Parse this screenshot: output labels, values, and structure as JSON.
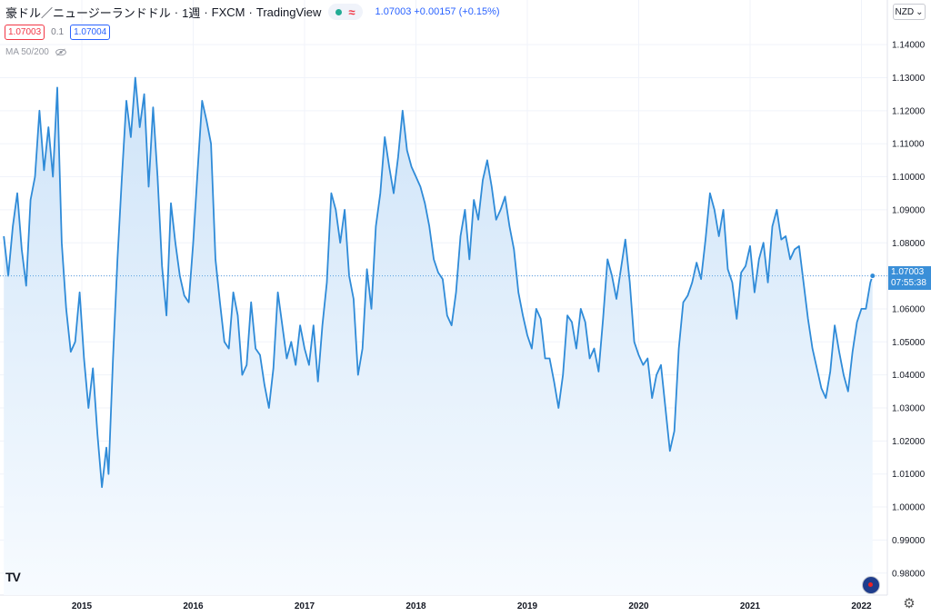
{
  "header": {
    "symbol": "豪ドル／ニュージーランドドル",
    "interval": "1週",
    "exchange": "FXCM",
    "source": "TradingView",
    "approx_symbol": "≈",
    "quote": "1.07003 +0.00157 (+0.15%)"
  },
  "trade": {
    "sell_price": "1.07003",
    "spread": "0.1",
    "buy_price": "1.07004"
  },
  "indicator": {
    "label": "MA 50/200"
  },
  "currency": {
    "label": "NZD",
    "arrow": "⌄"
  },
  "last_price": {
    "price": "1.07003",
    "countdown": "07:55:38"
  },
  "logo": {
    "text": "TV"
  },
  "colors": {
    "line": "#2f8bd8",
    "fill_top": "#cfe4f8",
    "fill_bottom": "#f7fbff",
    "grid": "#f0f3fa",
    "price_label": "#3a8fd8"
  },
  "chart_data": {
    "type": "area",
    "x_tick_labels": [
      "2015",
      "2016",
      "2017",
      "2018",
      "2019",
      "2020",
      "2021",
      "2022"
    ],
    "y_tick_labels": [
      "1.14000",
      "1.13000",
      "1.12000",
      "1.11000",
      "1.10000",
      "1.09000",
      "1.08000",
      "1.07000",
      "1.06000",
      "1.05000",
      "1.04000",
      "1.03000",
      "1.02000",
      "1.01000",
      "1.00000",
      "0.99000",
      "0.98000"
    ],
    "ylim": [
      0.975,
      1.145
    ],
    "xlim": [
      2014.3,
      2022.12
    ],
    "grid": true,
    "series": [
      {
        "x": [
          2014.3,
          2014.34,
          2014.38,
          2014.42,
          2014.46,
          2014.5,
          2014.54,
          2014.58,
          2014.62,
          2014.66,
          2014.7,
          2014.74,
          2014.78,
          2014.82,
          2014.86,
          2014.9,
          2014.94,
          2014.98,
          2015.02,
          2015.06,
          2015.1,
          2015.14,
          2015.18,
          2015.22,
          2015.24,
          2015.28,
          2015.32,
          2015.36,
          2015.4,
          2015.44,
          2015.48,
          2015.52,
          2015.56,
          2015.6,
          2015.64,
          2015.68,
          2015.72,
          2015.76,
          2015.8,
          2015.84,
          2015.88,
          2015.92,
          2015.96,
          2016.0,
          2016.04,
          2016.08,
          2016.12,
          2016.16,
          2016.2,
          2016.24,
          2016.28,
          2016.32,
          2016.36,
          2016.4,
          2016.44,
          2016.48,
          2016.52,
          2016.56,
          2016.6,
          2016.64,
          2016.68,
          2016.72,
          2016.76,
          2016.8,
          2016.84,
          2016.88,
          2016.92,
          2016.96,
          2017.0,
          2017.04,
          2017.08,
          2017.12,
          2017.16,
          2017.2,
          2017.24,
          2017.28,
          2017.32,
          2017.36,
          2017.4,
          2017.44,
          2017.48,
          2017.52,
          2017.56,
          2017.6,
          2017.64,
          2017.68,
          2017.72,
          2017.76,
          2017.8,
          2017.84,
          2017.88,
          2017.92,
          2017.96,
          2018.0,
          2018.04,
          2018.08,
          2018.12,
          2018.16,
          2018.2,
          2018.24,
          2018.28,
          2018.32,
          2018.36,
          2018.4,
          2018.44,
          2018.48,
          2018.52,
          2018.56,
          2018.6,
          2018.64,
          2018.68,
          2018.72,
          2018.76,
          2018.8,
          2018.84,
          2018.88,
          2018.92,
          2018.96,
          2019.0,
          2019.04,
          2019.08,
          2019.12,
          2019.16,
          2019.2,
          2019.24,
          2019.28,
          2019.32,
          2019.36,
          2019.4,
          2019.44,
          2019.48,
          2019.52,
          2019.56,
          2019.6,
          2019.64,
          2019.68,
          2019.72,
          2019.76,
          2019.8,
          2019.84,
          2019.88,
          2019.92,
          2019.96,
          2020.0,
          2020.04,
          2020.08,
          2020.12,
          2020.16,
          2020.2,
          2020.24,
          2020.28,
          2020.32,
          2020.36,
          2020.4,
          2020.44,
          2020.48,
          2020.52,
          2020.56,
          2020.6,
          2020.64,
          2020.68,
          2020.72,
          2020.76,
          2020.8,
          2020.84,
          2020.88,
          2020.92,
          2020.96,
          2021.0,
          2021.04,
          2021.08,
          2021.12,
          2021.16,
          2021.2,
          2021.24,
          2021.28,
          2021.32,
          2021.36,
          2021.4,
          2021.44,
          2021.48,
          2021.52,
          2021.56,
          2021.6,
          2021.64,
          2021.68,
          2021.72,
          2021.76,
          2021.8,
          2021.84,
          2021.88,
          2021.92,
          2021.96,
          2022.0,
          2022.04,
          2022.08,
          2022.1
        ],
        "values": [
          1.082,
          1.07,
          1.085,
          1.095,
          1.078,
          1.067,
          1.093,
          1.1,
          1.12,
          1.102,
          1.115,
          1.1,
          1.127,
          1.08,
          1.06,
          1.047,
          1.05,
          1.065,
          1.045,
          1.03,
          1.042,
          1.022,
          1.006,
          1.018,
          1.01,
          1.045,
          1.075,
          1.1,
          1.123,
          1.112,
          1.13,
          1.115,
          1.125,
          1.097,
          1.121,
          1.1,
          1.073,
          1.058,
          1.092,
          1.08,
          1.07,
          1.064,
          1.062,
          1.08,
          1.102,
          1.123,
          1.117,
          1.11,
          1.075,
          1.062,
          1.05,
          1.048,
          1.065,
          1.058,
          1.04,
          1.043,
          1.062,
          1.048,
          1.046,
          1.037,
          1.03,
          1.042,
          1.065,
          1.055,
          1.045,
          1.05,
          1.043,
          1.055,
          1.048,
          1.043,
          1.055,
          1.038,
          1.055,
          1.068,
          1.095,
          1.09,
          1.08,
          1.09,
          1.07,
          1.063,
          1.04,
          1.048,
          1.072,
          1.06,
          1.085,
          1.095,
          1.112,
          1.103,
          1.095,
          1.106,
          1.12,
          1.108,
          1.103,
          1.1,
          1.097,
          1.092,
          1.085,
          1.075,
          1.071,
          1.069,
          1.058,
          1.055,
          1.065,
          1.082,
          1.09,
          1.075,
          1.093,
          1.087,
          1.099,
          1.105,
          1.097,
          1.087,
          1.09,
          1.094,
          1.085,
          1.078,
          1.065,
          1.058,
          1.052,
          1.048,
          1.06,
          1.057,
          1.045,
          1.045,
          1.038,
          1.03,
          1.04,
          1.058,
          1.056,
          1.048,
          1.06,
          1.056,
          1.045,
          1.048,
          1.041,
          1.057,
          1.075,
          1.07,
          1.063,
          1.072,
          1.081,
          1.068,
          1.05,
          1.046,
          1.043,
          1.045,
          1.033,
          1.04,
          1.043,
          1.03,
          1.017,
          1.023,
          1.048,
          1.062,
          1.064,
          1.068,
          1.074,
          1.069,
          1.081,
          1.095,
          1.09,
          1.082,
          1.09,
          1.072,
          1.068,
          1.057,
          1.071,
          1.073,
          1.079,
          1.065,
          1.075,
          1.08,
          1.068,
          1.085,
          1.09,
          1.081,
          1.082,
          1.075,
          1.078,
          1.079,
          1.068,
          1.057,
          1.048,
          1.042,
          1.036,
          1.033,
          1.041,
          1.055,
          1.047,
          1.04,
          1.035,
          1.047,
          1.056,
          1.06,
          1.06,
          1.068,
          1.07
        ]
      }
    ]
  }
}
